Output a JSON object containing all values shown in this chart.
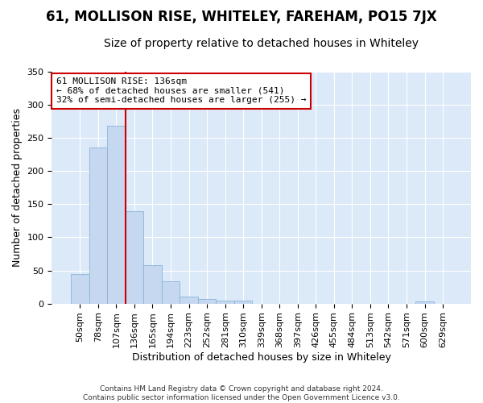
{
  "title": "61, MOLLISON RISE, WHITELEY, FAREHAM, PO15 7JX",
  "subtitle": "Size of property relative to detached houses in Whiteley",
  "xlabel": "Distribution of detached houses by size in Whiteley",
  "ylabel": "Number of detached properties",
  "categories": [
    "50sqm",
    "78sqm",
    "107sqm",
    "136sqm",
    "165sqm",
    "194sqm",
    "223sqm",
    "252sqm",
    "281sqm",
    "310sqm",
    "339sqm",
    "368sqm",
    "397sqm",
    "426sqm",
    "455sqm",
    "484sqm",
    "513sqm",
    "542sqm",
    "571sqm",
    "600sqm",
    "629sqm"
  ],
  "values": [
    44,
    236,
    268,
    140,
    58,
    33,
    10,
    7,
    4,
    4,
    0,
    0,
    0,
    0,
    0,
    0,
    0,
    0,
    0,
    3,
    0
  ],
  "bar_color": "#c5d8f0",
  "bar_edge_color": "#8ab4d8",
  "red_line_x": 2.5,
  "annotation_line1": "61 MOLLISON RISE: 136sqm",
  "annotation_line2": "← 68% of detached houses are smaller (541)",
  "annotation_line3": "32% of semi-detached houses are larger (255) →",
  "annotation_box_facecolor": "#ffffff",
  "annotation_box_edgecolor": "#cc0000",
  "title_fontsize": 12,
  "subtitle_fontsize": 10,
  "label_fontsize": 9,
  "tick_fontsize": 8,
  "annot_fontsize": 8,
  "ylim": [
    0,
    350
  ],
  "yticks": [
    0,
    50,
    100,
    150,
    200,
    250,
    300,
    350
  ],
  "plot_bg_color": "#dce9f8",
  "fig_bg_color": "#ffffff",
  "grid_color": "#ffffff",
  "footer_line1": "Contains HM Land Registry data © Crown copyright and database right 2024.",
  "footer_line2": "Contains public sector information licensed under the Open Government Licence v3.0."
}
